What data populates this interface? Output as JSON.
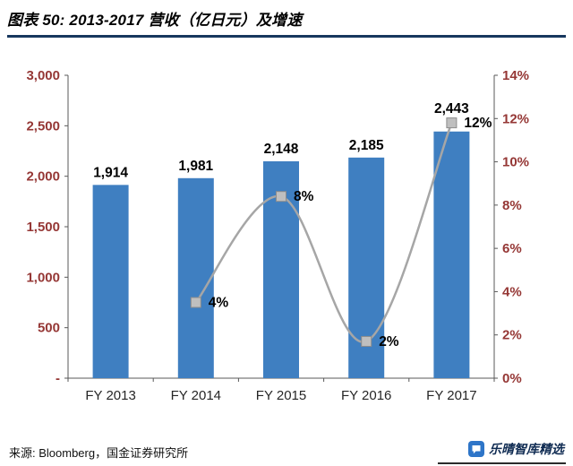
{
  "header": {
    "title": "图表 50: 2013-2017 营收（亿日元）及增速"
  },
  "footer": {
    "source": "来源: Bloomberg，国金证券研究所",
    "watermark": "乐晴智库精选"
  },
  "colors": {
    "bar": "#3F7FC1",
    "line": "#A6A6A6",
    "marker_fill": "#BFBFBF",
    "marker_stroke": "#8C8C8C",
    "axis_line": "#595959",
    "axis_label": "#953735",
    "x_label": "#262626",
    "data_label": "#000000",
    "title_rule": "#17375E",
    "watermark_blue": "#2E75C8"
  },
  "chart_data": {
    "type": "combo",
    "title": "2013-2017 营收（亿日元）及增速",
    "categories": [
      "FY 2013",
      "FY 2014",
      "FY 2015",
      "FY 2016",
      "FY 2017"
    ],
    "series": [
      {
        "name": "营收（亿日元）",
        "type": "bar",
        "axis": "left",
        "values": [
          1914,
          1981,
          2148,
          2185,
          2443
        ],
        "labels": [
          "1,914",
          "1,981",
          "2,148",
          "2,185",
          "2,443"
        ]
      },
      {
        "name": "增速",
        "type": "line",
        "axis": "right",
        "values": [
          null,
          3.5,
          8.4,
          1.7,
          11.8
        ],
        "labels": [
          null,
          "4%",
          "8%",
          "2%",
          "12%"
        ]
      }
    ],
    "left_axis": {
      "min": 0,
      "max": 3000,
      "step": 500,
      "tick_labels": [
        "-",
        "500",
        "1,000",
        "1,500",
        "2,000",
        "2,500",
        "3,000"
      ]
    },
    "right_axis": {
      "min": 0,
      "max": 14,
      "step": 2,
      "tick_labels": [
        "0%",
        "2%",
        "4%",
        "6%",
        "8%",
        "10%",
        "12%",
        "14%"
      ]
    },
    "grid": false,
    "legend": "none"
  }
}
